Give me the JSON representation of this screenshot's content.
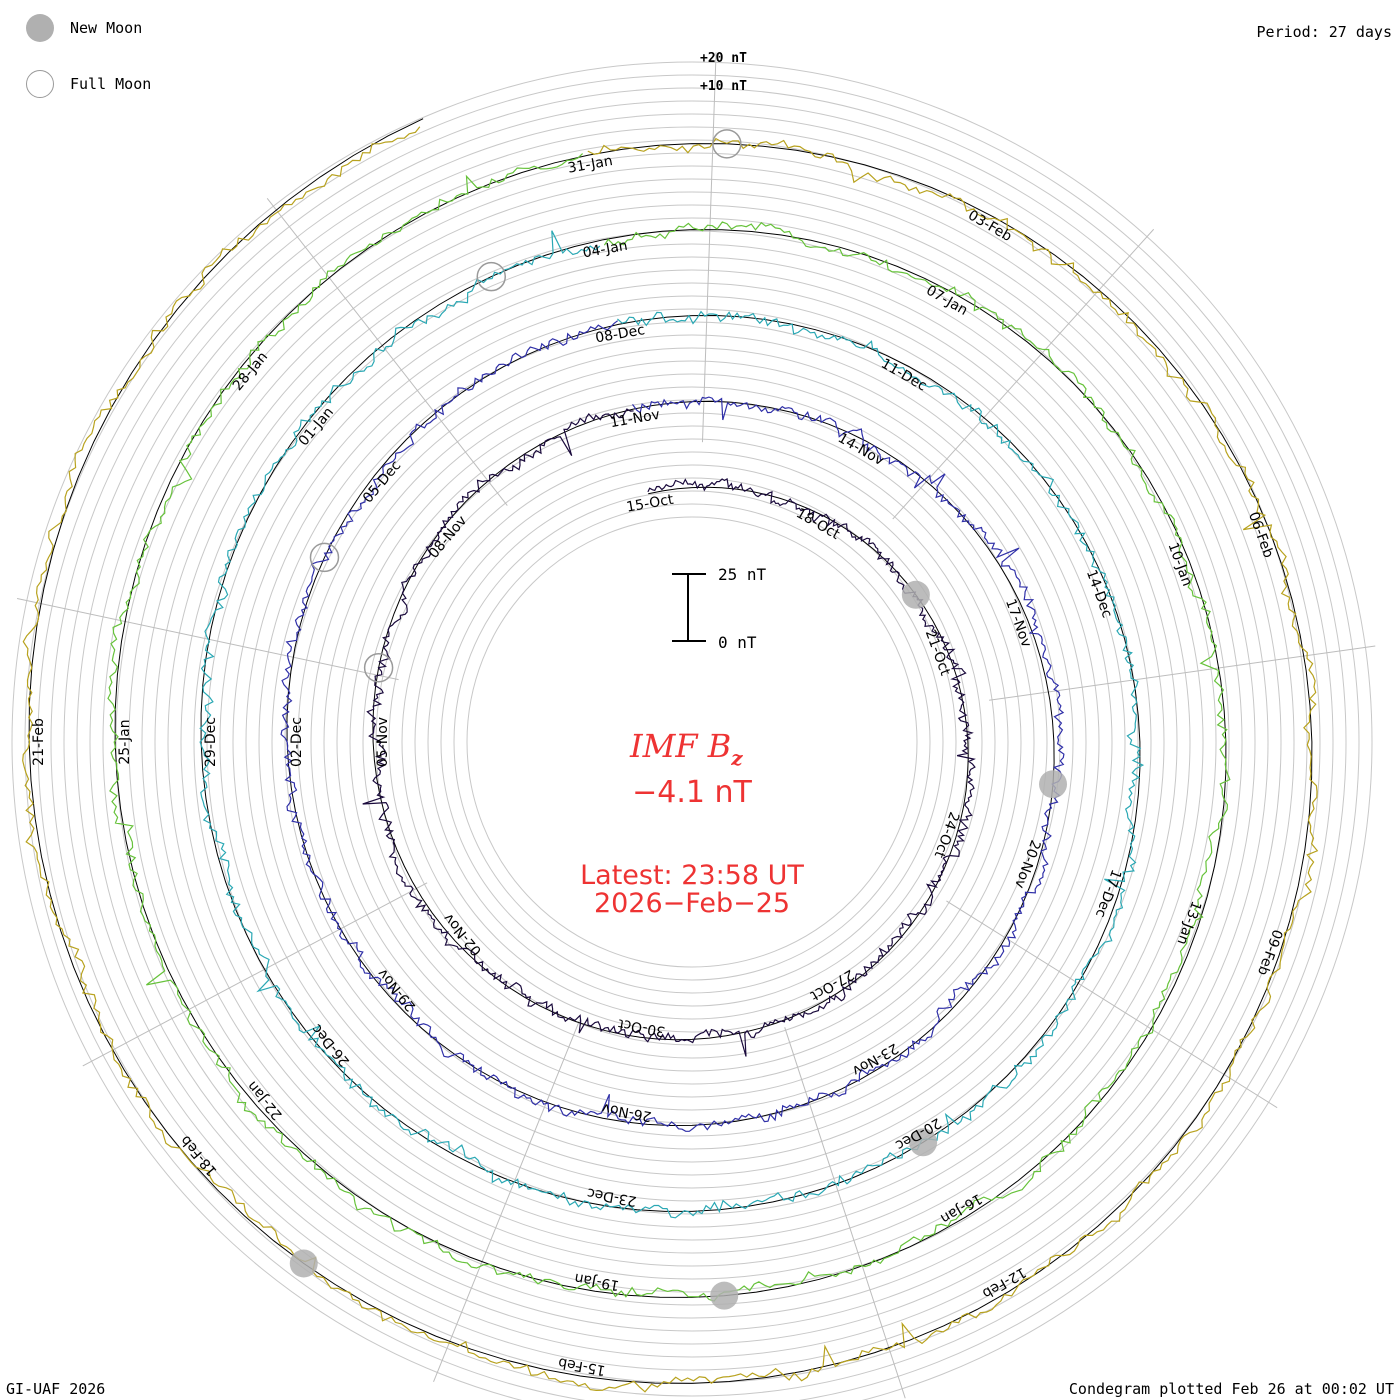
{
  "legend": {
    "new_moon_label": "New Moon",
    "full_moon_label": "Full Moon",
    "new_moon_color": "#b0b0b0",
    "full_moon_color": "#9a9a9a"
  },
  "period_label": "Period: 27 days",
  "footer_left": "GI-UAF 2026",
  "footer_right": "Condegram plotted Feb 26 at 00:02 UT",
  "center": {
    "title_main": "IMF B",
    "title_sub": "z",
    "current_value": "−4.1 nT",
    "latest_line1": "Latest: 23:58 UT",
    "latest_line2": "2026−Feb−25",
    "text_color": "#ee3333"
  },
  "chart_data": {
    "type": "line",
    "subtype": "spiral condegram",
    "variable": "IMF Bz",
    "units": "nT",
    "period_days": 27,
    "time_range": [
      "15-Oct-2025",
      "25-Feb-2026"
    ],
    "scale_bar": {
      "top_label": "25 nT",
      "bottom_label": "0 nT"
    },
    "ring_labels": [
      "+20 nT",
      "+10 nT"
    ],
    "latest_value": -4.1,
    "latest_time": "2026-Feb-25 23:58 UT",
    "rotations": [
      {
        "index": 1,
        "color": "#1a0a3c",
        "start": "15-Oct",
        "end": "11-Nov"
      },
      {
        "index": 2,
        "color": "#3030a8",
        "start": "11-Nov",
        "end": "08-Dec"
      },
      {
        "index": 3,
        "color": "#2aa8b4",
        "start": "08-Dec",
        "end": "04-Jan"
      },
      {
        "index": 4,
        "color": "#66c23a",
        "start": "04-Jan",
        "end": "31-Jan"
      },
      {
        "index": 5,
        "color": "#b8a21e",
        "start": "31-Jan",
        "end": "25-Feb"
      },
      {
        "index": 6,
        "color": "#c81a1a",
        "start": "25-Feb",
        "end": "25-Feb"
      }
    ],
    "date_labels": [
      "15-Oct",
      "18-Oct",
      "21-Oct",
      "24-Oct",
      "27-Oct",
      "30-Oct",
      "02-Nov",
      "05-Nov",
      "08-Nov",
      "11-Nov",
      "14-Nov",
      "17-Nov",
      "20-Nov",
      "23-Nov",
      "26-Nov",
      "29-Nov",
      "02-Dec",
      "05-Dec",
      "08-Dec",
      "11-Dec",
      "14-Dec",
      "17-Dec",
      "20-Dec",
      "23-Dec",
      "26-Dec",
      "29-Dec",
      "01-Jan",
      "04-Jan",
      "07-Jan",
      "10-Jan",
      "13-Jan",
      "16-Jan",
      "19-Jan",
      "22-Jan",
      "25-Jan",
      "28-Jan",
      "31-Jan",
      "03-Feb",
      "06-Feb",
      "09-Feb",
      "12-Feb",
      "15-Feb",
      "18-Feb",
      "21-Feb"
    ],
    "new_moons": [
      "20-Oct",
      "19-Nov",
      "20-Dec",
      "18-Jan",
      "17-Feb"
    ],
    "full_moons": [
      "06-Nov",
      "04-Dec",
      "03-Jan",
      "01-Feb"
    ]
  }
}
